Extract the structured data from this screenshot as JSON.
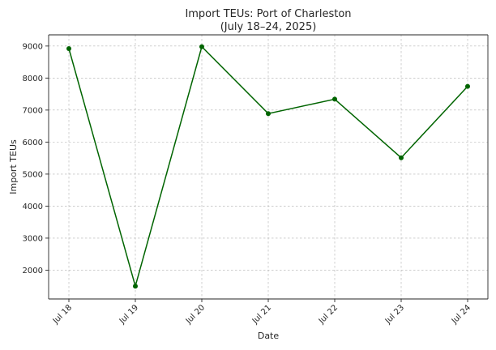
{
  "chart_data": {
    "type": "line",
    "title": "Import TEUs: Port of Charleston",
    "subtitle": "(July 18–24, 2025)",
    "xlabel": "Date",
    "ylabel": "Import TEUs",
    "categories": [
      "Jul 18",
      "Jul 19",
      "Jul 20",
      "Jul 21",
      "Jul 22",
      "Jul 23",
      "Jul 24"
    ],
    "series": [
      {
        "values": [
          8920,
          1500,
          8980,
          6890,
          7340,
          5510,
          7740
        ],
        "color": "#006400"
      }
    ],
    "ylim": [
      1100,
      9350
    ],
    "yticks": [
      2000,
      3000,
      4000,
      5000,
      6000,
      7000,
      8000,
      9000
    ],
    "grid": true
  }
}
